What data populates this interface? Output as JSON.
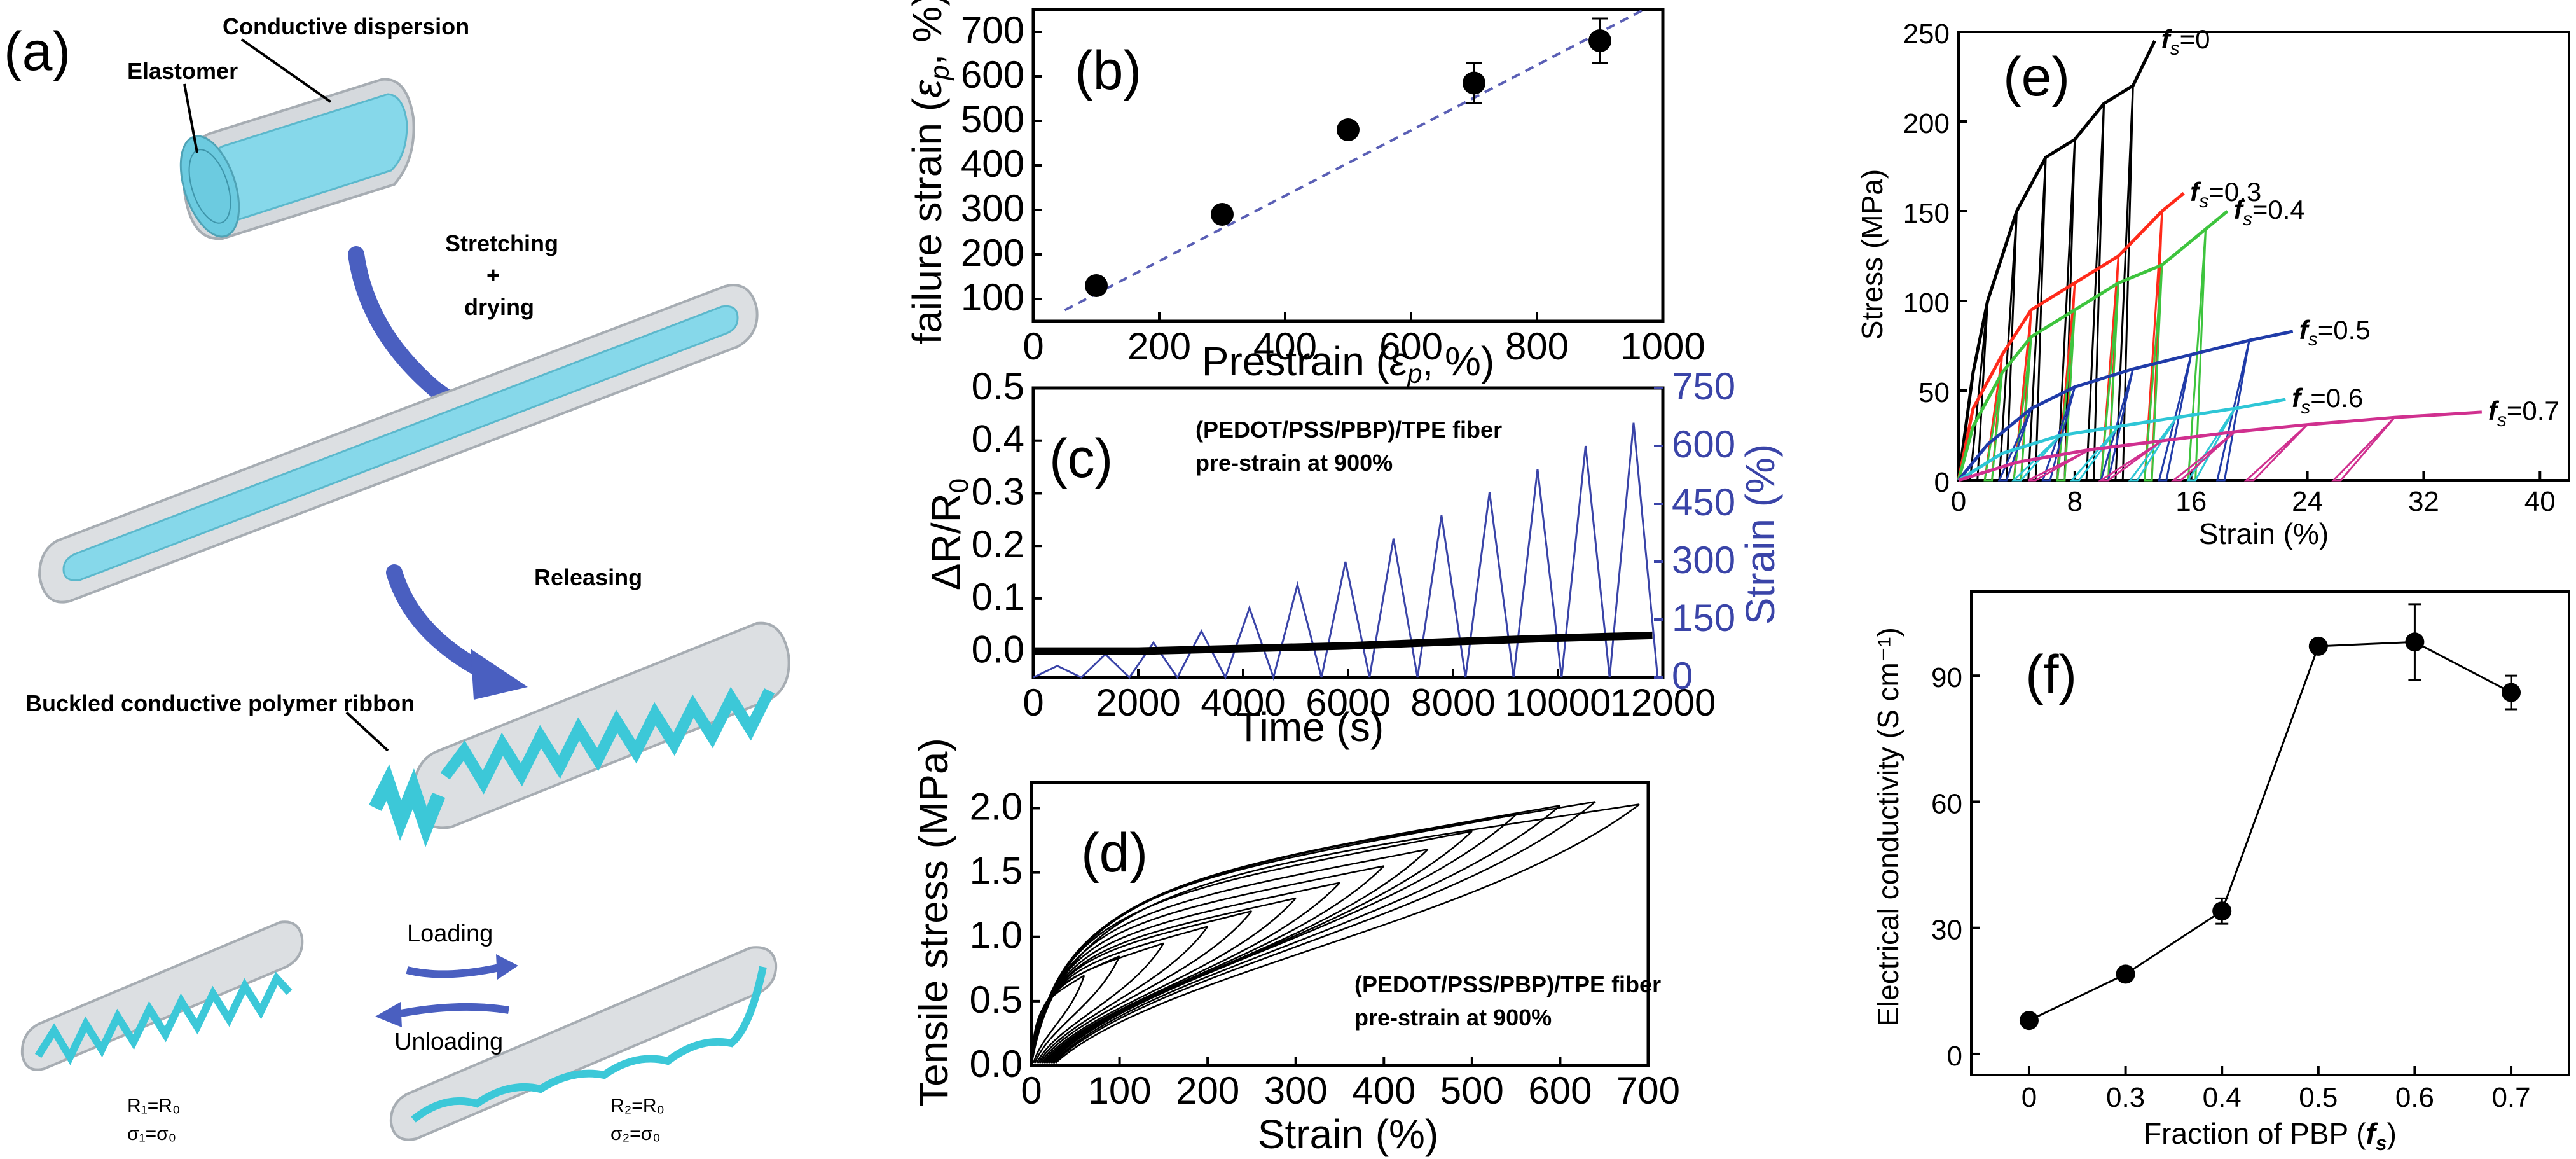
{
  "panels": {
    "a": {
      "letter": "(a)",
      "labels": {
        "conductive_dispersion": "Conductive dispersion",
        "elastomer": "Elastomer",
        "stretching": "Stretching",
        "plus": "+",
        "drying": "drying",
        "releasing": "Releasing",
        "buckled": "Buckled conductive polymer ribbon",
        "loading": "Loading",
        "unloading": "Unloading",
        "r1": "R₁=R₀",
        "s1": "σ₁=σ₀",
        "r2": "R₂=R₀",
        "s2": "σ₂=σ₀"
      },
      "colors": {
        "tube": "#d9dde1",
        "tube_edge": "#a7adb3",
        "core": "#7fd4e6",
        "ribbon": "#3cc8d8",
        "arrow": "#4a5fc0"
      }
    },
    "b": {
      "letter": "(b)",
      "ylabel": "failure strain (εp, %)",
      "ylabel_main": "failure strain (",
      "ylabel_eps": "ε",
      "ylabel_sub": "p",
      "ylabel_tail": ", %)",
      "xlabel_main": "Prestrain (",
      "xlabel_eps": "ε",
      "xlabel_sub": "p",
      "xlabel_tail": ", %)",
      "xticks": [
        "0",
        "200",
        "400",
        "600",
        "800",
        "1000"
      ],
      "yticks": [
        "100",
        "200",
        "300",
        "400",
        "500",
        "600",
        "700"
      ]
    },
    "c": {
      "letter": "(c)",
      "ylabel_left": "ΔR/R",
      "ylabel_left_sub": "0",
      "ylabel_right": "Strain (%)",
      "xlabel": "Time (s)",
      "annotation_line1": "(PEDOT/PSS/PBP)/TPE fiber",
      "annotation_line2": "pre-strain at 900%",
      "xticks": [
        "0",
        "2000",
        "4000",
        "6000",
        "8000",
        "10000",
        "12000"
      ],
      "yticks_left": [
        "0.0",
        "0.1",
        "0.2",
        "0.3",
        "0.4",
        "0.5"
      ],
      "yticks_right": [
        "0",
        "150",
        "300",
        "450",
        "600",
        "750"
      ],
      "strain_color": "#3a44a8"
    },
    "d": {
      "letter": "(d)",
      "ylabel": "Tensile stress (MPa)",
      "xlabel": "Strain (%)",
      "annotation_line1": "(PEDOT/PSS/PBP)/TPE fiber",
      "annotation_line2": "pre-strain at 900%",
      "xticks": [
        "0",
        "100",
        "200",
        "300",
        "400",
        "500",
        "600",
        "700"
      ],
      "yticks": [
        "0.0",
        "0.5",
        "1.0",
        "1.5",
        "2.0"
      ]
    },
    "e": {
      "letter": "(e)",
      "ylabel": "Stress (MPa)",
      "xlabel": "Strain (%)",
      "xticks": [
        "0",
        "8",
        "16",
        "24",
        "32",
        "40"
      ],
      "yticks": [
        "0",
        "50",
        "100",
        "150",
        "200",
        "250"
      ],
      "curve_labels": [
        "=0",
        "=0.3",
        "=0.4",
        "=0.5",
        "=0.6",
        "=0.7"
      ],
      "f_symbol": "f",
      "f_sub": "s"
    },
    "f": {
      "letter": "(f)",
      "ylabel": "Electrical conductivity (S cm⁻¹)",
      "xlabel_main": "Fraction of PBP (",
      "xlabel_f": "f",
      "xlabel_sub": "s",
      "xlabel_tail": ")",
      "xticks": [
        "0",
        "0.3",
        "0.4",
        "0.5",
        "0.6",
        "0.7"
      ],
      "yticks": [
        "0",
        "30",
        "60",
        "90"
      ]
    }
  },
  "chart_data": [
    {
      "panel": "b",
      "type": "scatter",
      "x": [
        100,
        300,
        500,
        700,
        900
      ],
      "y": [
        130,
        290,
        480,
        585,
        680
      ],
      "yerr": [
        0,
        0,
        0,
        45,
        50
      ],
      "fit": {
        "type": "line",
        "x": [
          50,
          970
        ],
        "y": [
          75,
          750
        ],
        "color": "#5a5fb5",
        "style": "dashed"
      },
      "xlim": [
        0,
        1000
      ],
      "ylim": [
        50,
        750
      ]
    },
    {
      "panel": "c",
      "type": "line",
      "series": [
        {
          "name": "ΔR/R0",
          "axis": "left",
          "color": "#000000",
          "x": [
            0,
            2000,
            4000,
            6000,
            8000,
            10000,
            11800
          ],
          "y": [
            0.0,
            0.0,
            0.005,
            0.01,
            0.018,
            0.025,
            0.03
          ]
        },
        {
          "name": "Strain",
          "axis": "right",
          "color": "#3a44a8",
          "peaks": [
            30,
            60,
            90,
            120,
            180,
            240,
            300,
            360,
            420,
            480,
            540,
            600,
            660
          ],
          "period_start": 0,
          "period_end": 11900
        }
      ],
      "xlim": [
        0,
        12000
      ],
      "ylim_left": [
        -0.05,
        0.5
      ],
      "ylim_right": [
        0,
        750
      ]
    },
    {
      "panel": "d",
      "type": "line",
      "cycle_peaks": [
        {
          "x": 60,
          "y": 0.7
        },
        {
          "x": 100,
          "y": 0.85
        },
        {
          "x": 150,
          "y": 0.95
        },
        {
          "x": 200,
          "y": 1.08
        },
        {
          "x": 250,
          "y": 1.2
        },
        {
          "x": 300,
          "y": 1.3
        },
        {
          "x": 350,
          "y": 1.42
        },
        {
          "x": 400,
          "y": 1.55
        },
        {
          "x": 450,
          "y": 1.68
        },
        {
          "x": 500,
          "y": 1.82
        },
        {
          "x": 550,
          "y": 1.95
        },
        {
          "x": 600,
          "y": 2.02
        },
        {
          "x": 640,
          "y": 2.05
        },
        {
          "x": 690,
          "y": 2.03
        }
      ],
      "xlim": [
        0,
        700
      ],
      "ylim": [
        0,
        2.2
      ]
    },
    {
      "panel": "e",
      "type": "line",
      "series": [
        {
          "name": "fs=0",
          "color": "#000000",
          "x": [
            0,
            1,
            2,
            4,
            6,
            8,
            10,
            12,
            13.5
          ],
          "y": [
            0,
            60,
            100,
            150,
            180,
            190,
            210,
            220,
            245
          ]
        },
        {
          "name": "fs=0.3",
          "color": "#ff2a1a",
          "x": [
            0,
            1,
            3,
            5,
            8,
            11,
            14,
            15.5
          ],
          "y": [
            0,
            40,
            70,
            95,
            110,
            125,
            150,
            160
          ]
        },
        {
          "name": "fs=0.4",
          "color": "#3ec43e",
          "x": [
            0,
            1,
            3,
            5,
            8,
            11,
            14,
            17,
            18.5
          ],
          "y": [
            0,
            30,
            60,
            80,
            95,
            110,
            120,
            140,
            150
          ]
        },
        {
          "name": "fs=0.5",
          "color": "#1f3ba8",
          "x": [
            0,
            2,
            5,
            8,
            12,
            16,
            20,
            23
          ],
          "y": [
            0,
            20,
            40,
            52,
            62,
            70,
            78,
            83
          ]
        },
        {
          "name": "fs=0.6",
          "color": "#2ec6d6",
          "x": [
            0,
            3,
            7,
            11,
            15,
            19,
            22.5
          ],
          "y": [
            0,
            15,
            25,
            30,
            35,
            40,
            45
          ]
        },
        {
          "name": "fs=0.7",
          "color": "#d0308f",
          "x": [
            0,
            4,
            9,
            14,
            19,
            24,
            30,
            36
          ],
          "y": [
            0,
            10,
            17,
            22,
            27,
            31,
            35,
            38
          ]
        }
      ],
      "xlim": [
        0,
        42
      ],
      "ylim": [
        0,
        250
      ]
    },
    {
      "panel": "f",
      "type": "line",
      "categories": [
        "0",
        "0.3",
        "0.4",
        "0.5",
        "0.6",
        "0.7"
      ],
      "values": [
        8,
        19,
        34,
        97,
        98,
        86
      ],
      "yerr": [
        0,
        0,
        3,
        0,
        9,
        4
      ],
      "ylim": [
        -5,
        110
      ]
    }
  ]
}
